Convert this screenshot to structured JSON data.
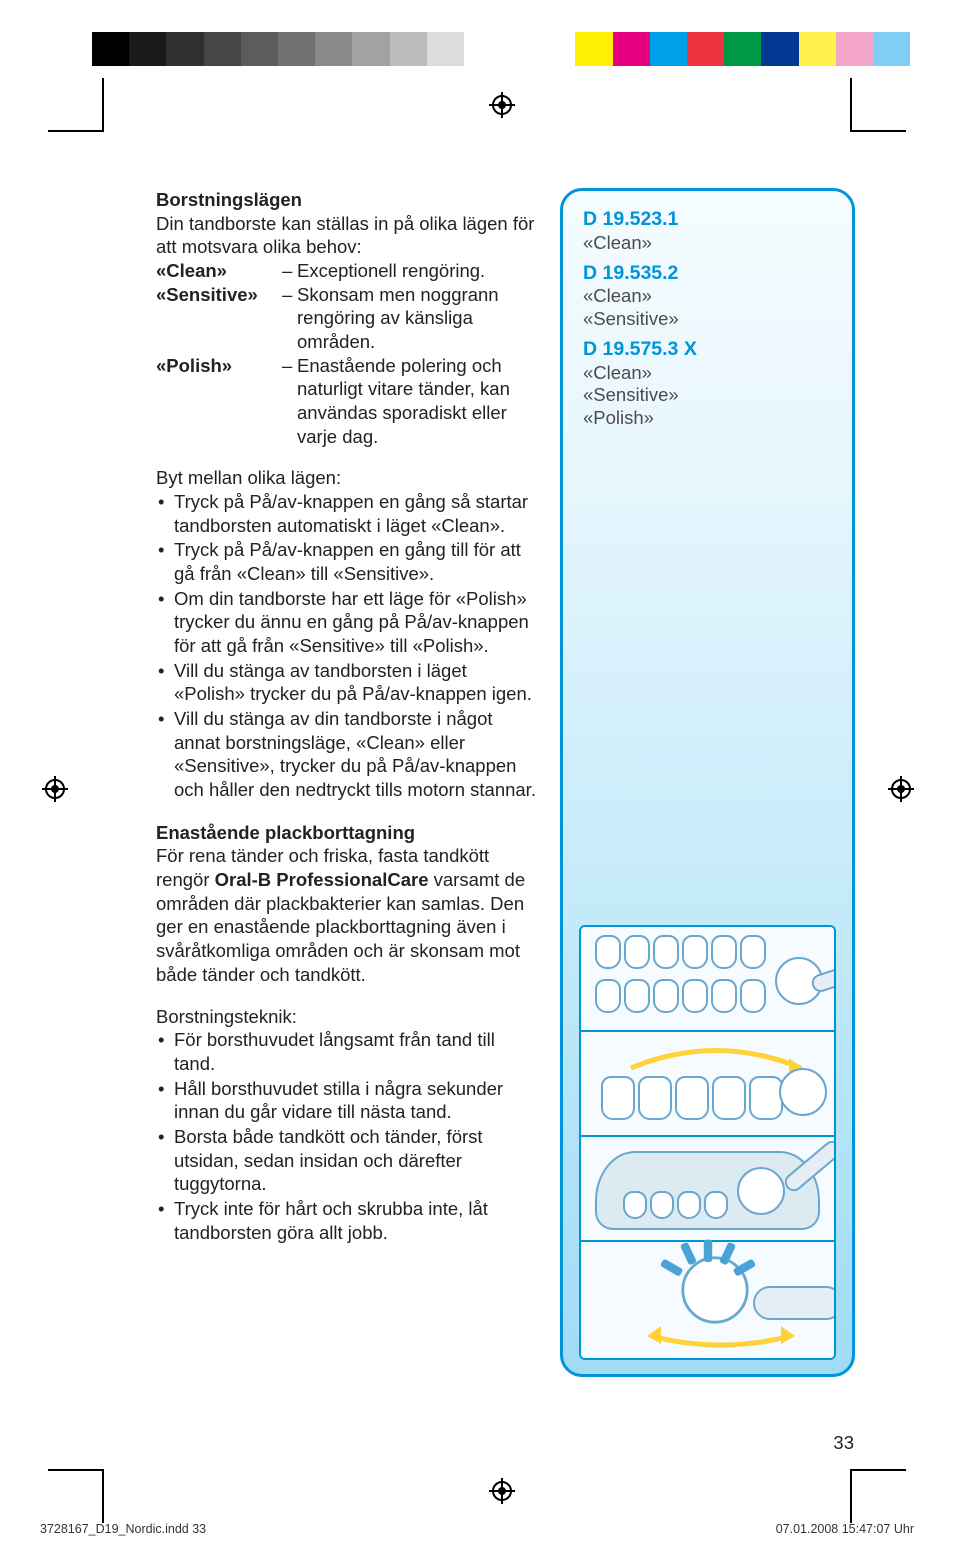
{
  "colorbar": [
    "#000000",
    "#1a1a1a",
    "#303030",
    "#464646",
    "#5c5c5c",
    "#727272",
    "#8a8a8a",
    "#a2a2a2",
    "#bcbcbc",
    "#dcdcdc",
    "#ffffff",
    "#ffffff",
    "#ffffff",
    "#ffef00",
    "#e4007f",
    "#00a0e9",
    "#ef3340",
    "#009944",
    "#003893",
    "#fff04b",
    "#f4a6c9",
    "#7fcef4"
  ],
  "sect1_h": "Borstningslägen",
  "intro1": "Din tandborste kan ställas in på olika lägen för att motsvara olika behov:",
  "defs": [
    {
      "term": "«Clean»",
      "body": "Exceptionell rengöring."
    },
    {
      "term": "«Sensitive»",
      "body": "Skonsam men noggrann rengöring av känsliga områden."
    },
    {
      "term": "«Polish»",
      "body": "Enastående polering och naturligt vitare tänder, kan användas sporadiskt eller varje dag."
    }
  ],
  "switch_h": "Byt mellan olika lägen:",
  "switch": [
    "Tryck på På/av-knappen en gång så startar tandborsten automatiskt i läget «Clean».",
    "Tryck på På/av-knappen en gång till för att gå från «Clean» till «Sensitive».",
    "Om din tandborste har ett läge för «Polish» trycker du ännu en gång på På/av-knappen för att gå från «Sensitive» till «Polish».",
    "Vill du stänga av tandborsten i läget «Polish» trycker du på På/av-knappen igen.",
    "Vill du stänga av din tandborste i något annat borstningsläge, «Clean» eller «Sensitive», trycker du på På/av-knappen och håller den nedtryckt tills motorn stannar."
  ],
  "sect2_h": "Enastående plackborttagning",
  "sect2_p_a": "För rena tänder och friska, fasta tandkött rengör ",
  "sect2_p_b": "Oral-B ProfessionalCare",
  "sect2_p_c": " varsamt de områden där plackbakterier kan samlas. Den ger en enastående plackborttagning även i svåråtkomliga områden och är skonsam mot både tänder och tandkött.",
  "tech_h": "Borstningsteknik:",
  "tech": [
    "För borsthuvudet långsamt från tand till tand.",
    "Håll borsthuvudet stilla i några sekunder innan du går vidare till nästa tand.",
    "Borsta både tandkött och tänder, först utsidan, sedan insidan och därefter tuggytorna.",
    "Tryck inte för hårt och skrubba inte, låt tandborsten göra allt jobb."
  ],
  "models": [
    {
      "h": "D 19.523.1",
      "subs": [
        "«Clean»"
      ]
    },
    {
      "h": "D 19.535.2",
      "subs": [
        "«Clean»",
        "«Sensitive»"
      ]
    },
    {
      "h": "D 19.575.3 X",
      "subs": [
        "«Clean»",
        "«Sensitive»",
        "«Polish»"
      ]
    }
  ],
  "pagenum": "33",
  "footer_l": "3728167_D19_Nordic.indd   33",
  "footer_r": "07.01.2008   15:47:07 Uhr"
}
